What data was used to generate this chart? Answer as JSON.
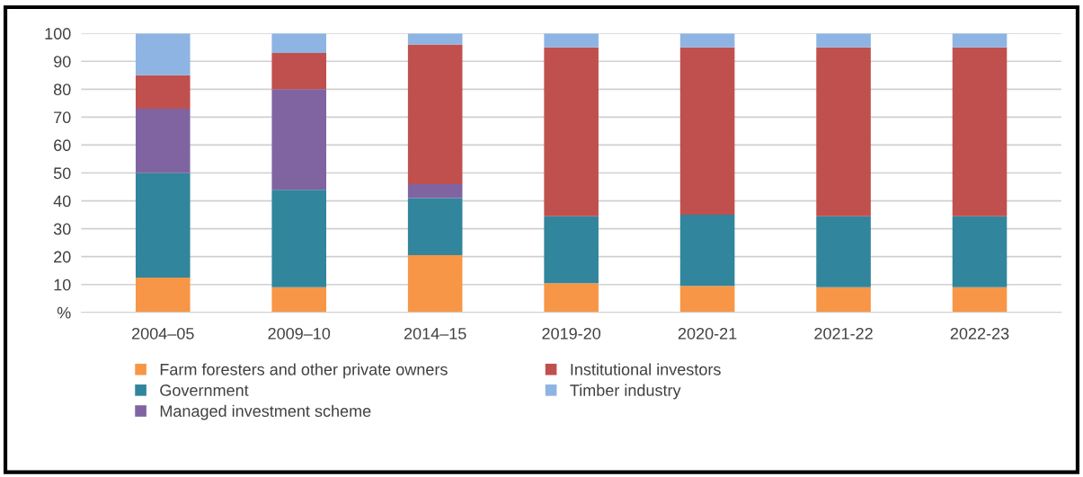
{
  "chart_data": {
    "type": "bar",
    "stacked": true,
    "categories": [
      "2004–05",
      "2009–10",
      "2014–15",
      "2019-20",
      "2020-21",
      "2021-22",
      "2022-23"
    ],
    "series": [
      {
        "name": "Farm foresters and other private owners",
        "color": "#f79646",
        "values": [
          12.5,
          9,
          20.5,
          10.5,
          9.5,
          9,
          9
        ]
      },
      {
        "name": "Government",
        "color": "#31859c",
        "values": [
          37.5,
          35,
          20.5,
          24,
          25.5,
          25.5,
          25.5
        ]
      },
      {
        "name": "Managed investment scheme",
        "color": "#8064a2",
        "values": [
          23,
          36,
          5,
          0,
          0,
          0,
          0
        ]
      },
      {
        "name": "Institutional investors",
        "color": "#c0504d",
        "values": [
          12,
          13,
          50,
          60.5,
          60,
          60.5,
          60.5
        ]
      },
      {
        "name": "Timber industry",
        "color": "#8eb4e3",
        "values": [
          15,
          7,
          4,
          5,
          5,
          5,
          5
        ]
      }
    ],
    "ylim": [
      0,
      100
    ],
    "yticks": [
      {
        "value": 0,
        "label": "%"
      },
      10,
      20,
      30,
      40,
      50,
      60,
      70,
      80,
      90,
      100
    ],
    "grid": "y",
    "legend": "bottom"
  }
}
